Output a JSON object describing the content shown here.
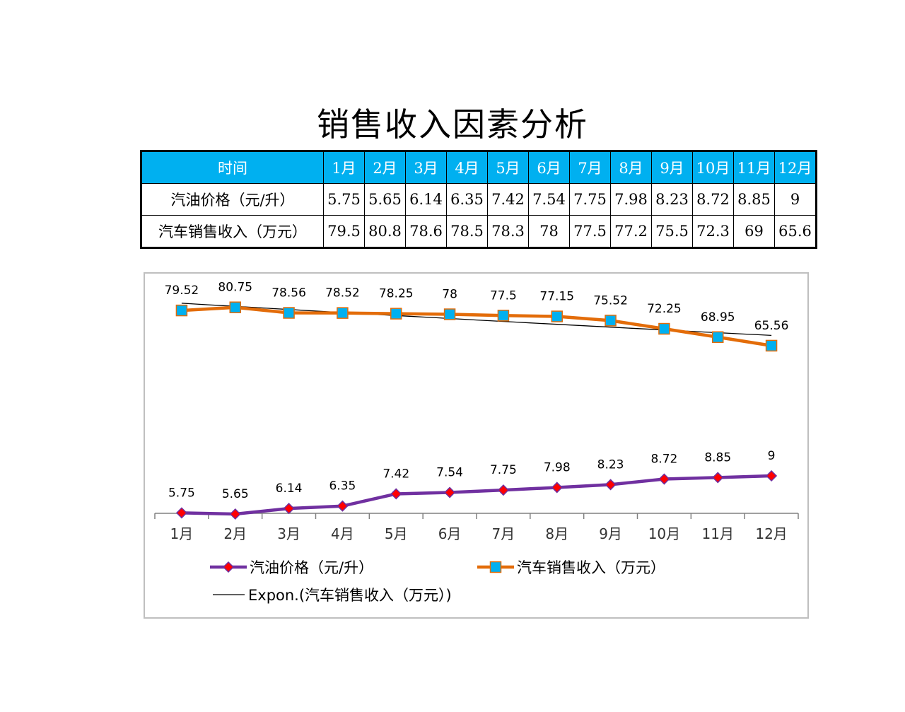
{
  "page": {
    "title": "销售收入因素分析"
  },
  "table": {
    "header_label": "时间",
    "columns": [
      "1月",
      "2月",
      "3月",
      "4月",
      "5月",
      "6月",
      "7月",
      "8月",
      "9月",
      "10月",
      "11月",
      "12月"
    ],
    "rows": [
      {
        "label": "汽油价格（元/升）",
        "values": [
          "5.75",
          "5.65",
          "6.14",
          "6.35",
          "7.42",
          "7.54",
          "7.75",
          "7.98",
          "8.23",
          "8.72",
          "8.85",
          "9"
        ]
      },
      {
        "label": "汽车销售收入（万元）",
        "values": [
          "79.5",
          "80.8",
          "78.6",
          "78.5",
          "78.3",
          "78",
          "77.5",
          "77.2",
          "75.5",
          "72.3",
          "69",
          "65.6"
        ]
      }
    ]
  },
  "chart_data": {
    "type": "line",
    "categories": [
      "1月",
      "2月",
      "3月",
      "4月",
      "5月",
      "6月",
      "7月",
      "8月",
      "9月",
      "10月",
      "11月",
      "12月"
    ],
    "series": [
      {
        "name": "汽油价格（元/升）",
        "values": [
          5.75,
          5.65,
          6.14,
          6.35,
          7.42,
          7.54,
          7.75,
          7.98,
          8.23,
          8.72,
          8.85,
          9
        ],
        "labels": [
          "5.75",
          "5.65",
          "6.14",
          "6.35",
          "7.42",
          "7.54",
          "7.75",
          "7.98",
          "8.23",
          "8.72",
          "8.85",
          "9"
        ],
        "color": "#7030A0",
        "marker_color": "#FF0000",
        "marker": "diamond"
      },
      {
        "name": "汽车销售收入（万元）",
        "values": [
          79.52,
          80.75,
          78.56,
          78.52,
          78.25,
          78,
          77.5,
          77.15,
          75.52,
          72.25,
          68.95,
          65.56
        ],
        "labels": [
          "79.52",
          "80.75",
          "78.56",
          "78.52",
          "78.25",
          "78",
          "77.5",
          "77.15",
          "75.52",
          "72.25",
          "68.95",
          "65.56"
        ],
        "color": "#E36C09",
        "marker_color": "#00B0F0",
        "marker": "square"
      }
    ],
    "trendline": {
      "name": "Expon.(汽车销售收入（万元）)",
      "type": "exponential",
      "of_series": "汽车销售收入（万元）",
      "color": "#000000"
    },
    "ylim": [
      0,
      90
    ],
    "grid": false,
    "legend_position": "bottom"
  }
}
